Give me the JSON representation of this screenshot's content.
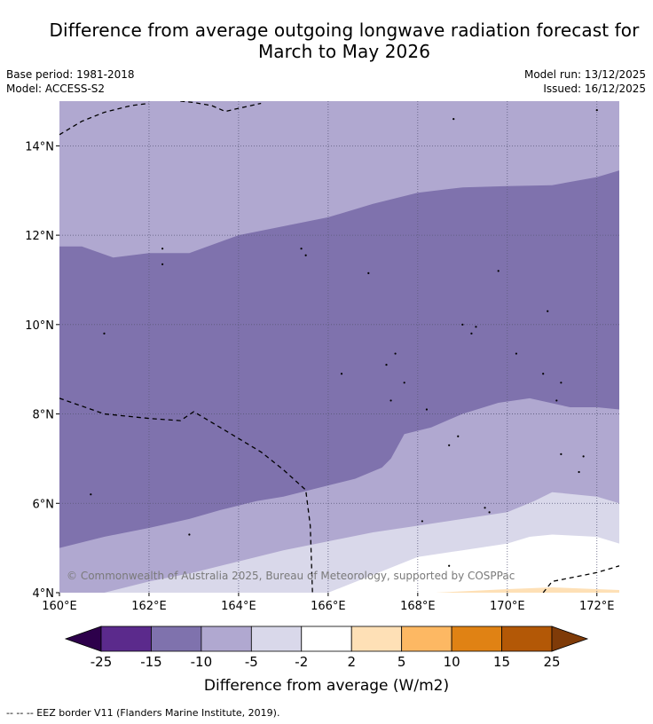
{
  "title_line1": "Difference from average outgoing longwave radiation forecast for",
  "title_line2": "March to May 2026",
  "base_period": "Base period: 1981-2018",
  "model": "Model: ACCESS-S2",
  "model_run": "Model run: 13/12/2025",
  "issued": "Issued: 16/12/2025",
  "copyright": "© Commonwealth of Australia 2025, Bureau of Meteorology, supported by COSPPac",
  "footnote": "--  --  -- EEZ border V11 (Flanders Marine Institute, 2019).",
  "chart_data": {
    "type": "heatmap",
    "title": "Difference from average outgoing longwave radiation forecast for March to May 2026",
    "x_ticks": [
      {
        "value": 160,
        "label": "160°E"
      },
      {
        "value": 162,
        "label": "162°E"
      },
      {
        "value": 164,
        "label": "164°E"
      },
      {
        "value": 166,
        "label": "166°E"
      },
      {
        "value": 168,
        "label": "168°E"
      },
      {
        "value": 170,
        "label": "170°E"
      },
      {
        "value": 172,
        "label": "172°E"
      }
    ],
    "y_ticks": [
      {
        "value": 4,
        "label": "4°N"
      },
      {
        "value": 6,
        "label": "6°N"
      },
      {
        "value": 8,
        "label": "8°N"
      },
      {
        "value": 10,
        "label": "10°N"
      },
      {
        "value": 12,
        "label": "12°N"
      },
      {
        "value": 14,
        "label": "14°N"
      }
    ],
    "xlim": [
      160,
      172.5
    ],
    "ylim": [
      4,
      15
    ],
    "colorbar": {
      "label": "Difference from average (W/m2)",
      "bounds": [
        -25,
        -15,
        -10,
        -5,
        -2,
        2,
        5,
        10,
        15,
        25
      ],
      "tick_labels": [
        "-25",
        "-15",
        "-10",
        "-5",
        "-2",
        "2",
        "5",
        "10",
        "15",
        "25"
      ],
      "colors": [
        "#5b2a8c",
        "#7f72ad",
        "#b0a8d0",
        "#d9d8ea",
        "#ffffff",
        "#fee0b6",
        "#fdb863",
        "#e08214",
        "#b35806"
      ],
      "under_color": "#2d004b",
      "over_color": "#7f3b08"
    },
    "regions": [
      {
        "level": "-10 to -5",
        "color": "#b0a8d0",
        "boundary": [
          [
            160,
            15
          ],
          [
            172.5,
            15
          ],
          [
            172.5,
            4
          ],
          [
            160,
            4
          ]
        ]
      },
      {
        "level": "-15 to -10",
        "color": "#7f72ad",
        "boundary": [
          [
            160,
            11.75
          ],
          [
            160.5,
            11.75
          ],
          [
            161.2,
            11.5
          ],
          [
            162,
            11.6
          ],
          [
            162.9,
            11.6
          ],
          [
            164,
            12
          ],
          [
            165,
            12.2
          ],
          [
            166,
            12.4
          ],
          [
            167,
            12.7
          ],
          [
            168,
            12.95
          ],
          [
            169,
            13.07
          ],
          [
            170,
            13.1
          ],
          [
            171,
            13.12
          ],
          [
            172,
            13.3
          ],
          [
            172.5,
            13.45
          ],
          [
            172.5,
            8.1
          ],
          [
            172,
            8.15
          ],
          [
            171.4,
            8.15
          ],
          [
            170.5,
            8.35
          ],
          [
            169.8,
            8.25
          ],
          [
            169,
            8
          ],
          [
            168.3,
            7.7
          ],
          [
            167.7,
            7.55
          ],
          [
            167.4,
            7.0
          ],
          [
            167.2,
            6.8
          ],
          [
            166.6,
            6.55
          ],
          [
            166,
            6.4
          ],
          [
            165,
            6.15
          ],
          [
            164.4,
            6.05
          ],
          [
            163.6,
            5.85
          ],
          [
            162.9,
            5.65
          ],
          [
            162,
            5.45
          ],
          [
            161,
            5.25
          ],
          [
            160,
            5.0
          ]
        ]
      },
      {
        "level": "-5 to -2",
        "color": "#d9d8ea",
        "boundary": [
          [
            161,
            4
          ],
          [
            162,
            4.25
          ],
          [
            163,
            4.45
          ],
          [
            164,
            4.7
          ],
          [
            165,
            4.95
          ],
          [
            166,
            5.15
          ],
          [
            167,
            5.35
          ],
          [
            168,
            5.5
          ],
          [
            169,
            5.65
          ],
          [
            170,
            5.8
          ],
          [
            170.6,
            6.05
          ],
          [
            171,
            6.25
          ],
          [
            172,
            6.15
          ],
          [
            172.5,
            6.0
          ],
          [
            172.5,
            4
          ],
          [
            165,
            4
          ]
        ]
      },
      {
        "level": "-2 to 2",
        "color": "#ffffff",
        "boundary": [
          [
            166,
            4
          ],
          [
            167,
            4.4
          ],
          [
            168,
            4.8
          ],
          [
            169,
            4.95
          ],
          [
            170,
            5.1
          ],
          [
            170.5,
            5.25
          ],
          [
            171,
            5.3
          ],
          [
            172,
            5.25
          ],
          [
            172.5,
            5.1
          ],
          [
            172.5,
            4
          ]
        ]
      },
      {
        "level": "2 to 5",
        "color": "#fee0b6",
        "boundary": [
          [
            168.4,
            4
          ],
          [
            169.2,
            4.04
          ],
          [
            170,
            4.08
          ],
          [
            171,
            4.12
          ],
          [
            172.5,
            4.06
          ],
          [
            172.5,
            4
          ]
        ]
      }
    ],
    "eez_borders": [
      [
        [
          160,
          14.25
        ],
        [
          160.5,
          14.55
        ],
        [
          161,
          14.75
        ],
        [
          161.6,
          14.9
        ],
        [
          162,
          14.95
        ]
      ],
      [
        [
          162.7,
          15
        ],
        [
          163,
          14.97
        ],
        [
          163.4,
          14.9
        ],
        [
          163.7,
          14.77
        ],
        [
          164,
          14.84
        ],
        [
          164.5,
          14.95
        ]
      ],
      [
        [
          160,
          8.35
        ],
        [
          161,
          8.0
        ],
        [
          162,
          7.9
        ],
        [
          162.7,
          7.85
        ],
        [
          163,
          8.05
        ],
        [
          163.5,
          7.75
        ],
        [
          164,
          7.45
        ],
        [
          164.5,
          7.15
        ],
        [
          165,
          6.75
        ],
        [
          165.5,
          6.3
        ],
        [
          165.6,
          5.5
        ],
        [
          165.65,
          4
        ]
      ],
      [
        [
          170.8,
          4
        ],
        [
          171,
          4.25
        ],
        [
          172,
          4.45
        ],
        [
          172.5,
          4.6
        ]
      ]
    ],
    "islands": [
      [
        162.3,
        11.7
      ],
      [
        162.3,
        11.35
      ],
      [
        161.0,
        9.8
      ],
      [
        165.4,
        11.7
      ],
      [
        165.5,
        11.55
      ],
      [
        168.8,
        14.6
      ],
      [
        169.8,
        11.2
      ],
      [
        166.9,
        11.15
      ],
      [
        170.9,
        10.3
      ],
      [
        169.0,
        10.0
      ],
      [
        169.3,
        9.95
      ],
      [
        169.2,
        9.8
      ],
      [
        170.2,
        9.35
      ],
      [
        167.5,
        9.35
      ],
      [
        167.3,
        9.1
      ],
      [
        167.7,
        8.7
      ],
      [
        166.3,
        8.9
      ],
      [
        167.4,
        8.3
      ],
      [
        168.2,
        8.1
      ],
      [
        170.8,
        8.9
      ],
      [
        171.2,
        8.7
      ],
      [
        171.1,
        8.3
      ],
      [
        168.9,
        7.5
      ],
      [
        168.7,
        7.3
      ],
      [
        171.2,
        7.1
      ],
      [
        171.7,
        7.05
      ],
      [
        171.6,
        6.7
      ],
      [
        169.5,
        5.9
      ],
      [
        169.6,
        5.8
      ],
      [
        168.1,
        5.6
      ],
      [
        168.7,
        4.6
      ],
      [
        172.0,
        14.8
      ],
      [
        160.7,
        6.2
      ],
      [
        162.9,
        5.3
      ]
    ]
  }
}
